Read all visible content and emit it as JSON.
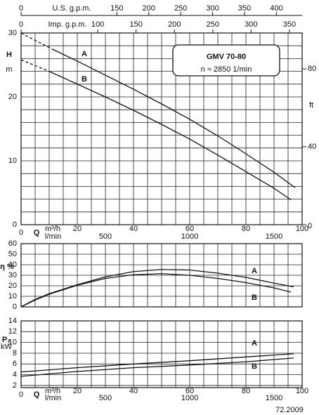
{
  "chart_data": [
    {
      "type": "line",
      "title": "GMV 70-80",
      "subtitle": "n ≈ 2850 1/min",
      "ylabel": "H",
      "yunit": "m",
      "ylim": [
        0,
        30
      ],
      "yticks": [
        0,
        10,
        20,
        30
      ],
      "ygrid": [
        0,
        2,
        4,
        6,
        8,
        10,
        12,
        14,
        16,
        18,
        20,
        22,
        24,
        26,
        28,
        30
      ],
      "y2label": "ft",
      "y2lim": [
        0,
        98.43
      ],
      "y2ticks": [
        0,
        40,
        80
      ],
      "series": [
        {
          "name": "A",
          "x": [
            11,
            20,
            30,
            40,
            50,
            60,
            70,
            80,
            90,
            97.5
          ],
          "values": [
            27.5,
            25.6,
            23.4,
            21.2,
            18.9,
            16.5,
            13.9,
            11.1,
            8.2,
            5.8
          ]
        },
        {
          "name": "B",
          "x": [
            10,
            20,
            30,
            40,
            50,
            60,
            70,
            80,
            90,
            96
          ],
          "values": [
            24,
            22,
            20,
            17.9,
            15.7,
            13.4,
            10.9,
            8.3,
            5.7,
            3.9
          ]
        },
        {
          "dash": true,
          "x": [
            0,
            11
          ],
          "values": [
            30,
            27.5
          ]
        },
        {
          "dash": true,
          "x": [
            0,
            10
          ],
          "values": [
            25.8,
            24
          ]
        }
      ]
    },
    {
      "type": "line",
      "ylabel": "η %",
      "ylim": [
        0,
        60
      ],
      "yticks": [
        0,
        10,
        20,
        30,
        40,
        50,
        60
      ],
      "ygrid": [
        0,
        10,
        20,
        30,
        40,
        50,
        60
      ],
      "series": [
        {
          "name": "A",
          "x": [
            0,
            5,
            10,
            20,
            30,
            40,
            50,
            60,
            70,
            80,
            90,
            97
          ],
          "values": [
            0,
            7,
            12.5,
            21,
            28.5,
            33.5,
            35.5,
            35,
            32,
            28,
            22.5,
            19
          ]
        },
        {
          "name": "B",
          "x": [
            0,
            5,
            10,
            20,
            30,
            40,
            50,
            60,
            70,
            80,
            90,
            96
          ],
          "values": [
            0,
            6.5,
            12,
            20.5,
            27,
            30.5,
            31.5,
            30,
            27,
            23,
            18,
            14
          ]
        }
      ]
    },
    {
      "type": "line",
      "ylabel": "P₂",
      "yunit": "kW",
      "ylim": [
        1.6,
        14
      ],
      "yticks": [
        2,
        4,
        6,
        8,
        10,
        12,
        14
      ],
      "ygrid": [
        2,
        4,
        6,
        8,
        10,
        12,
        14
      ],
      "series": [
        {
          "name": "A",
          "x": [
            0,
            20,
            40,
            60,
            80,
            97
          ],
          "values": [
            4.5,
            5.3,
            6,
            6.6,
            7.3,
            7.9
          ]
        },
        {
          "name": "B",
          "x": [
            0,
            20,
            40,
            60,
            80,
            97
          ],
          "values": [
            3.7,
            4.6,
            5.3,
            5.8,
            6.4,
            7.1
          ]
        }
      ]
    }
  ],
  "q_axis": {
    "label": "Q",
    "unit": "m³/h",
    "xlim": [
      0,
      100
    ],
    "xticks": [
      0,
      20,
      40,
      60,
      80,
      100
    ],
    "xgrid": [
      0,
      5,
      10,
      15,
      20,
      25,
      30,
      35,
      40,
      45,
      50,
      55,
      60,
      65,
      70,
      75,
      80,
      85,
      90,
      95,
      100
    ]
  },
  "lmin_axis": {
    "unit": "l/min",
    "lim": [
      0,
      1666.7
    ],
    "ticks": [
      500,
      1000,
      1500
    ]
  },
  "top_axes": [
    {
      "label": "U.S. g.p.m.",
      "lim": [
        0,
        440.3
      ],
      "ticks": [
        0,
        150,
        200,
        250,
        300,
        350,
        400
      ]
    },
    {
      "label": "Imp. g.p.m.",
      "lim": [
        0,
        366.6
      ],
      "ticks": [
        0,
        100,
        150,
        200,
        250,
        300,
        350
      ]
    }
  ],
  "footer": "72.2009"
}
